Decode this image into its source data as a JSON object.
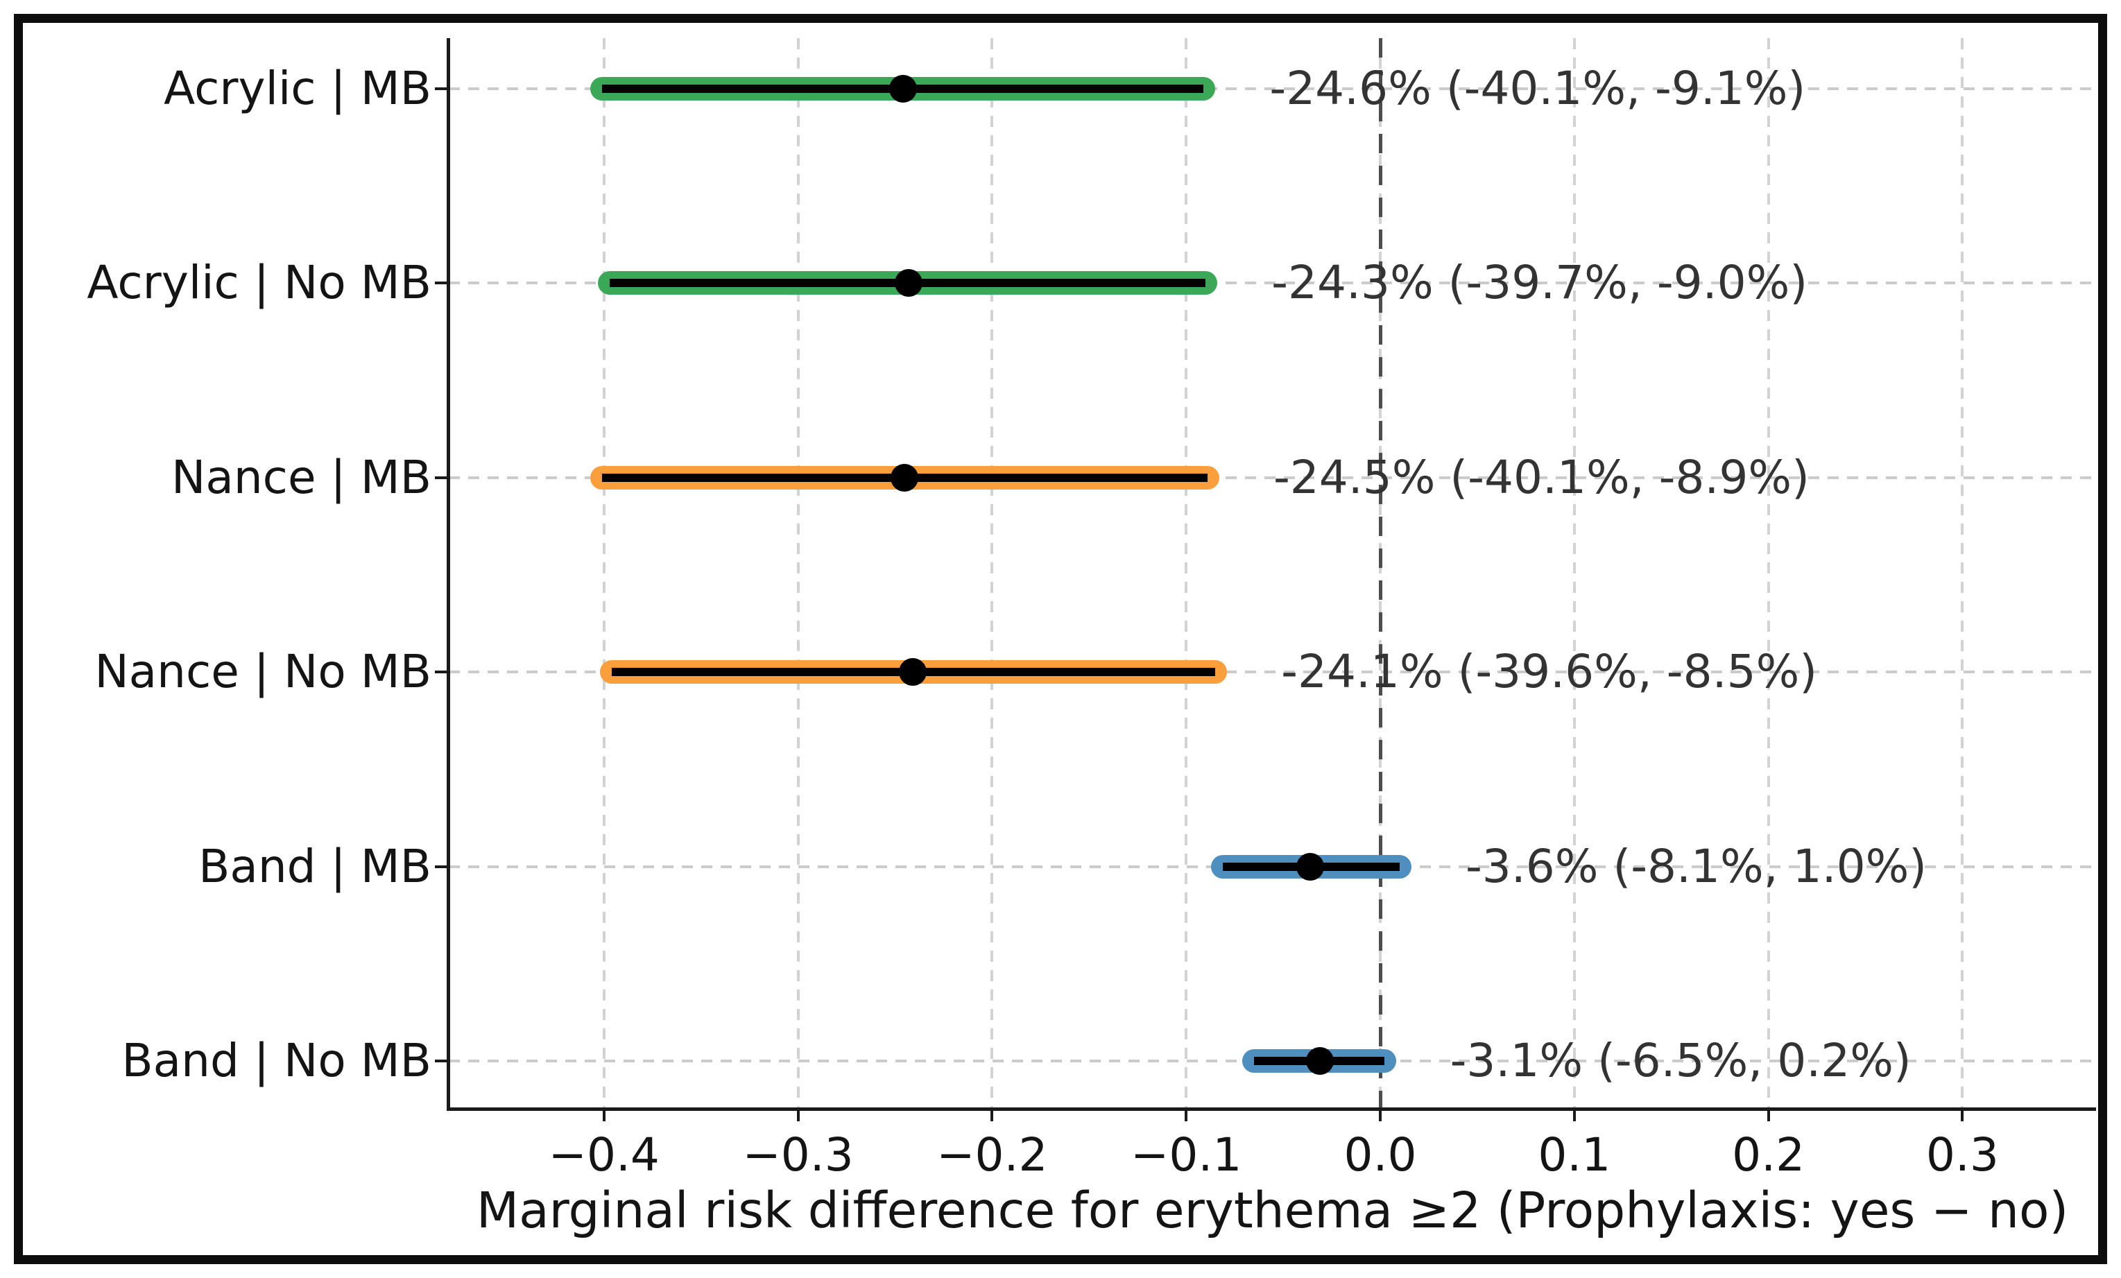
{
  "chart_data": {
    "type": "forest",
    "title": "",
    "xlabel": "Marginal risk difference for erythema ≥2 (Prophylaxis: yes − no)",
    "xlim": [
      -0.48,
      0.369
    ],
    "grid": true,
    "zero_reference_line": {
      "value": 0.0,
      "color": "#4d4d4d",
      "style": "dashed"
    },
    "x_ticks": [
      {
        "value": -0.4,
        "label": "−0.4"
      },
      {
        "value": -0.3,
        "label": "−0.3"
      },
      {
        "value": -0.2,
        "label": "−0.2"
      },
      {
        "value": -0.1,
        "label": "−0.1"
      },
      {
        "value": 0.0,
        "label": "0.0"
      },
      {
        "value": 0.1,
        "label": "0.1"
      },
      {
        "value": 0.2,
        "label": "0.2"
      },
      {
        "value": 0.3,
        "label": "0.3"
      }
    ],
    "rows": [
      {
        "label": "Acrylic | MB",
        "estimate": -0.246,
        "ci_low": -0.401,
        "ci_high": -0.091,
        "color": "#3aa857",
        "annotation": "-24.6% (-40.1%, -9.1%)"
      },
      {
        "label": "Acrylic | No MB",
        "estimate": -0.243,
        "ci_low": -0.397,
        "ci_high": -0.09,
        "color": "#3aa857",
        "annotation": "-24.3% (-39.7%, -9.0%)"
      },
      {
        "label": "Nance | MB",
        "estimate": -0.245,
        "ci_low": -0.401,
        "ci_high": -0.089,
        "color": "#fb9e3c",
        "annotation": "-24.5% (-40.1%, -8.9%)"
      },
      {
        "label": "Nance | No MB",
        "estimate": -0.241,
        "ci_low": -0.396,
        "ci_high": -0.085,
        "color": "#fb9e3c",
        "annotation": "-24.1% (-39.6%, -8.5%)"
      },
      {
        "label": "Band | MB",
        "estimate": -0.036,
        "ci_low": -0.081,
        "ci_high": 0.01,
        "color": "#4f8fc0",
        "annotation": "-3.6% (-8.1%, 1.0%)"
      },
      {
        "label": "Band | No MB",
        "estimate": -0.031,
        "ci_low": -0.065,
        "ci_high": 0.002,
        "color": "#4f8fc0",
        "annotation": "-3.1% (-6.5%, 0.2%)"
      }
    ],
    "colors": {
      "point_marker": "#000000",
      "ci_inner_line": "#000000",
      "annotation_text": "#333333",
      "grid": "#cbcbcb",
      "figure_border": "#0d0d0d"
    },
    "legend": "none"
  }
}
